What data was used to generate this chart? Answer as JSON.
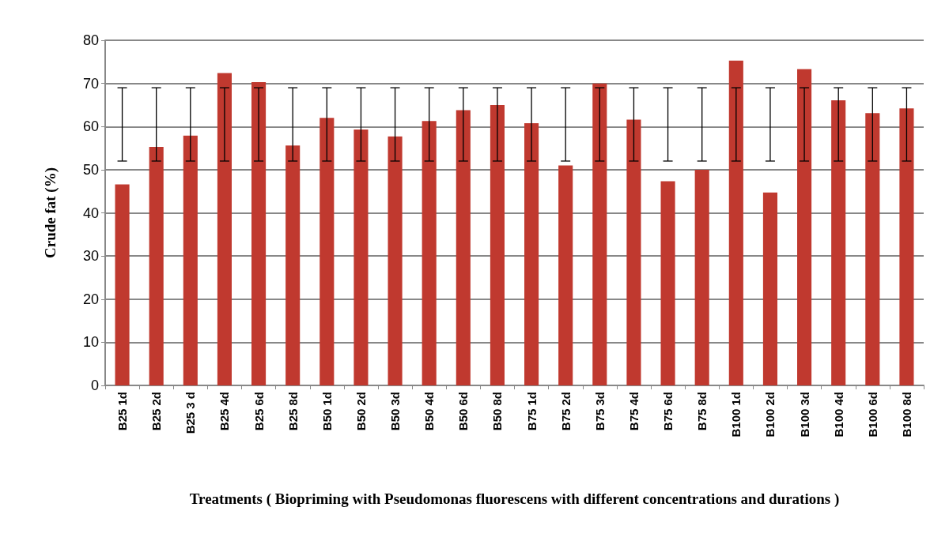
{
  "chart_data": {
    "type": "bar",
    "xlabel": "Treatments ( Biopriming with Pseudomonas fluorescens with different concentrations and durations )",
    "ylabel": "Crude fat (%)",
    "categories": [
      "B25 1d",
      "B25 2d",
      "B25 3 d",
      "B25 4d",
      "B25 6d",
      "B25 8d",
      "B50 1d",
      "B50 2d",
      "B50 3d",
      "B50 4d",
      "B50 6d",
      "B50 8d",
      "B75 1d",
      "B75 2d",
      "B75 3d",
      "B75 4d",
      "B75 6d",
      "B75 8d",
      "B100 1d",
      "B100 2d",
      "B100 3d",
      "B100 4d",
      "B100 6d",
      "B100 8d"
    ],
    "values": [
      46.6,
      55.3,
      57.9,
      72.4,
      70.3,
      55.6,
      62.0,
      59.3,
      57.7,
      61.3,
      63.8,
      65.0,
      60.8,
      51.0,
      70.0,
      61.6,
      47.3,
      50.0,
      75.3,
      44.7,
      73.3,
      66.1,
      63.1,
      64.2
    ],
    "errors": [
      [
        52,
        69
      ],
      [
        52,
        69
      ],
      [
        52,
        69
      ],
      [
        52,
        69
      ],
      [
        52,
        69
      ],
      [
        52,
        69
      ],
      [
        52,
        69
      ],
      [
        52,
        69
      ],
      [
        52,
        69
      ],
      [
        52,
        69
      ],
      [
        52,
        69
      ],
      [
        52,
        69
      ],
      [
        52,
        69
      ],
      [
        52,
        69
      ],
      [
        52,
        69
      ],
      [
        52,
        69
      ],
      [
        52,
        69
      ],
      [
        52,
        69
      ],
      [
        52,
        69
      ],
      [
        52,
        69
      ],
      [
        52,
        69
      ],
      [
        52,
        69
      ],
      [
        52,
        69
      ],
      [
        52,
        69
      ]
    ],
    "color": "#c0392f",
    "ylim": [
      0,
      80
    ],
    "yticks": [
      0,
      10,
      20,
      30,
      40,
      50,
      60,
      70,
      80
    ],
    "grid": "y"
  }
}
